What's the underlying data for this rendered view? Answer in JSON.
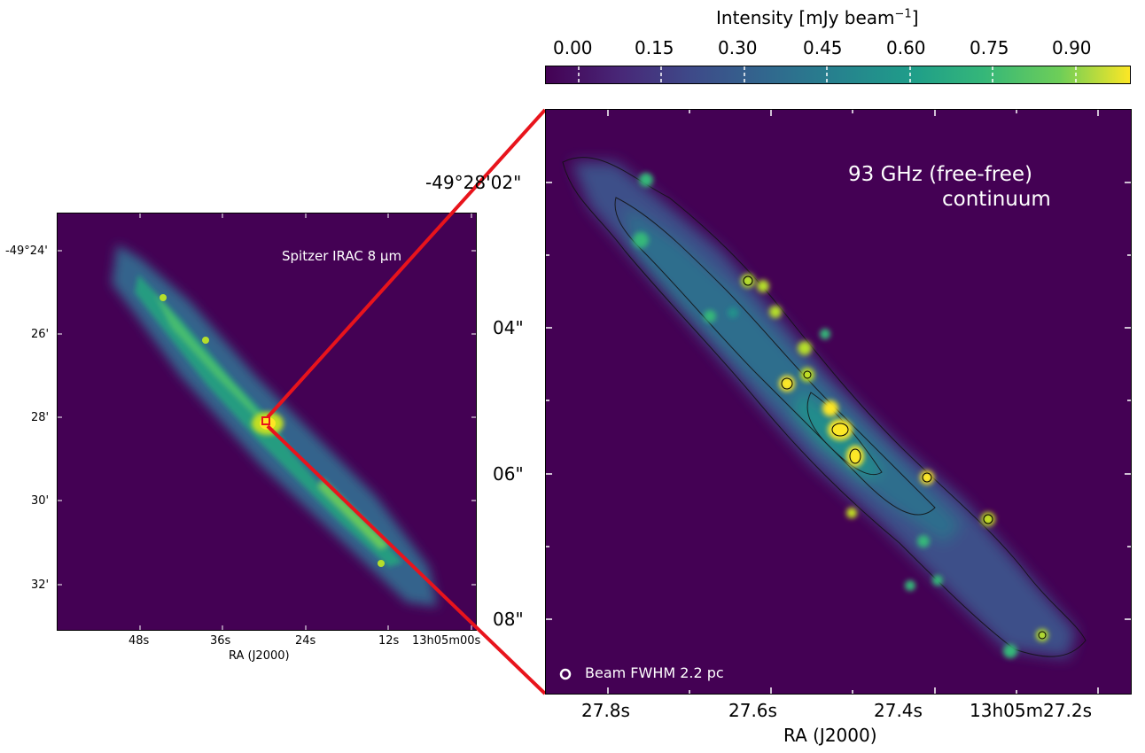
{
  "colorbar": {
    "label_main": "Intensity [mJy beam",
    "label_exp": "−1",
    "label_close": "]",
    "ticks": [
      "0.00",
      "0.15",
      "0.30",
      "0.45",
      "0.60",
      "0.75",
      "0.90"
    ]
  },
  "left_panel": {
    "label": "Spitzer IRAC 8 µm",
    "xlabel": "RA (J2000)",
    "x_ticks": [
      "48s",
      "36s",
      "24s",
      "12s",
      "13h05m00s"
    ],
    "y_ticks": [
      "-49°24'",
      "26'",
      "28'",
      "30'",
      "32'"
    ]
  },
  "right_panel": {
    "label_line1": "93 GHz (free-free)",
    "label_line2": "continuum",
    "beam_label": "Beam FWHM 2.2 pc",
    "xlabel": "RA (J2000)",
    "x_ticks": [
      "27.8s",
      "27.6s",
      "27.4s",
      "13h05m27.2s"
    ],
    "y_ticks": [
      "-49°28'02\"",
      "04\"",
      "06\"",
      "08\""
    ]
  },
  "colors": {
    "background_map": "#440154",
    "highlight": "#fde725",
    "zoom_lines": "#e8141c"
  }
}
